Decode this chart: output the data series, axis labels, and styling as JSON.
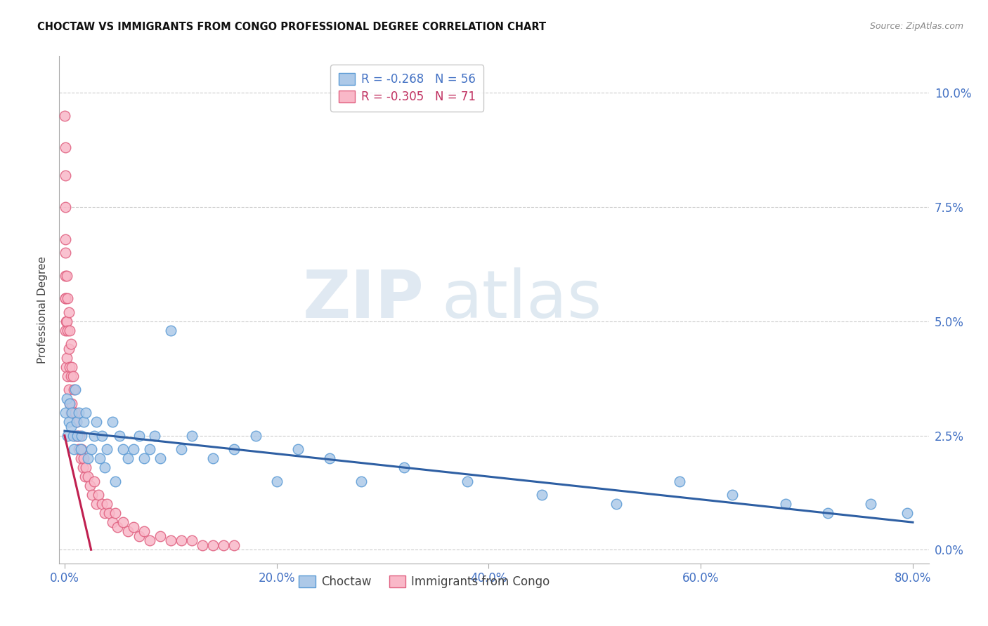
{
  "title": "CHOCTAW VS IMMIGRANTS FROM CONGO PROFESSIONAL DEGREE CORRELATION CHART",
  "source": "Source: ZipAtlas.com",
  "ylabel": "Professional Degree",
  "xlabel_ticks": [
    "0.0%",
    "20.0%",
    "40.0%",
    "60.0%",
    "80.0%"
  ],
  "ylabel_ticks": [
    "0.0%",
    "2.5%",
    "5.0%",
    "7.5%",
    "10.0%"
  ],
  "xlim": [
    -0.005,
    0.815
  ],
  "ylim": [
    -0.003,
    0.108
  ],
  "choctaw_color": "#adc9e8",
  "choctaw_edge_color": "#5b9bd5",
  "congo_color": "#f9b8c8",
  "congo_edge_color": "#e06080",
  "trend_choctaw_color": "#2e5fa3",
  "trend_congo_color": "#c02050",
  "legend_choctaw_R": "-0.268",
  "legend_choctaw_N": "56",
  "legend_congo_R": "-0.305",
  "legend_congo_N": "71",
  "grid_color": "#cccccc",
  "background_color": "#ffffff",
  "choctaw_x": [
    0.001,
    0.002,
    0.003,
    0.004,
    0.005,
    0.006,
    0.007,
    0.008,
    0.009,
    0.01,
    0.011,
    0.012,
    0.013,
    0.015,
    0.016,
    0.018,
    0.02,
    0.022,
    0.025,
    0.028,
    0.03,
    0.033,
    0.035,
    0.038,
    0.04,
    0.045,
    0.048,
    0.052,
    0.055,
    0.06,
    0.065,
    0.07,
    0.075,
    0.08,
    0.085,
    0.09,
    0.1,
    0.11,
    0.12,
    0.14,
    0.16,
    0.18,
    0.2,
    0.22,
    0.25,
    0.28,
    0.32,
    0.38,
    0.45,
    0.52,
    0.58,
    0.63,
    0.68,
    0.72,
    0.76,
    0.795
  ],
  "choctaw_y": [
    0.03,
    0.033,
    0.025,
    0.028,
    0.032,
    0.027,
    0.03,
    0.025,
    0.022,
    0.035,
    0.028,
    0.025,
    0.03,
    0.022,
    0.025,
    0.028,
    0.03,
    0.02,
    0.022,
    0.025,
    0.028,
    0.02,
    0.025,
    0.018,
    0.022,
    0.028,
    0.015,
    0.025,
    0.022,
    0.02,
    0.022,
    0.025,
    0.02,
    0.022,
    0.025,
    0.02,
    0.048,
    0.022,
    0.025,
    0.02,
    0.022,
    0.025,
    0.015,
    0.022,
    0.02,
    0.015,
    0.018,
    0.015,
    0.012,
    0.01,
    0.015,
    0.012,
    0.01,
    0.008,
    0.01,
    0.008
  ],
  "congo_x": [
    0.0003,
    0.0004,
    0.0005,
    0.0006,
    0.0007,
    0.0008,
    0.0009,
    0.001,
    0.001,
    0.001,
    0.0015,
    0.0015,
    0.002,
    0.002,
    0.002,
    0.003,
    0.003,
    0.003,
    0.004,
    0.004,
    0.004,
    0.005,
    0.005,
    0.005,
    0.006,
    0.006,
    0.006,
    0.007,
    0.007,
    0.008,
    0.008,
    0.009,
    0.01,
    0.01,
    0.011,
    0.012,
    0.013,
    0.014,
    0.015,
    0.016,
    0.017,
    0.018,
    0.019,
    0.02,
    0.022,
    0.024,
    0.026,
    0.028,
    0.03,
    0.032,
    0.035,
    0.038,
    0.04,
    0.042,
    0.045,
    0.048,
    0.05,
    0.055,
    0.06,
    0.065,
    0.07,
    0.075,
    0.08,
    0.09,
    0.1,
    0.11,
    0.12,
    0.13,
    0.14,
    0.15,
    0.16
  ],
  "congo_y": [
    0.095,
    0.088,
    0.082,
    0.075,
    0.068,
    0.06,
    0.055,
    0.065,
    0.055,
    0.048,
    0.05,
    0.04,
    0.06,
    0.05,
    0.042,
    0.055,
    0.048,
    0.038,
    0.052,
    0.044,
    0.035,
    0.048,
    0.04,
    0.032,
    0.045,
    0.038,
    0.03,
    0.04,
    0.032,
    0.038,
    0.03,
    0.035,
    0.03,
    0.025,
    0.028,
    0.025,
    0.022,
    0.025,
    0.02,
    0.022,
    0.018,
    0.02,
    0.016,
    0.018,
    0.016,
    0.014,
    0.012,
    0.015,
    0.01,
    0.012,
    0.01,
    0.008,
    0.01,
    0.008,
    0.006,
    0.008,
    0.005,
    0.006,
    0.004,
    0.005,
    0.003,
    0.004,
    0.002,
    0.003,
    0.002,
    0.002,
    0.002,
    0.001,
    0.001,
    0.001,
    0.001
  ],
  "trend_choctaw_x0": 0.0,
  "trend_choctaw_y0": 0.026,
  "trend_choctaw_x1": 0.8,
  "trend_choctaw_y1": 0.006,
  "trend_congo_x0": 0.0,
  "trend_congo_y0": 0.025,
  "trend_congo_x1": 0.025,
  "trend_congo_y1": 0.0
}
